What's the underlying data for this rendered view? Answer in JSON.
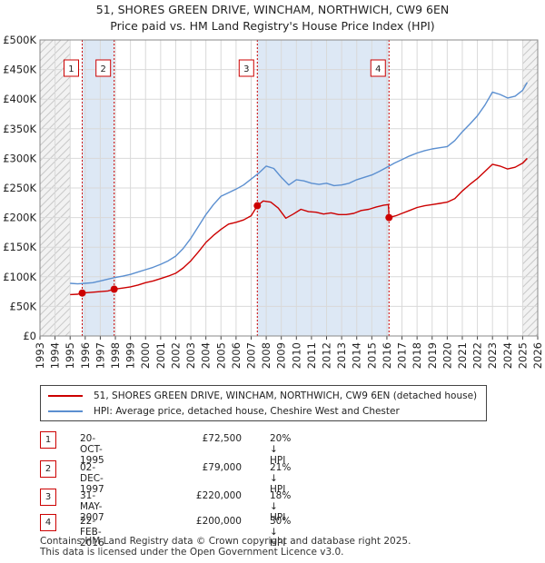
{
  "title_line1": "51, SHORES GREEN DRIVE, WINCHAM, NORTHWICH, CW9 6EN",
  "title_line2": "Price paid vs. HM Land Registry's House Price Index (HPI)",
  "colors": {
    "property": "#cc0000",
    "hpi": "#5b8fd0",
    "band": "#dde8f5",
    "marker_box": "#cc0000"
  },
  "legend": {
    "property_label": "51, SHORES GREEN DRIVE, WINCHAM, NORTHWICH, CW9 6EN (detached house)",
    "hpi_label": "HPI: Average price, detached house, Cheshire West and Chester"
  },
  "transactions": [
    {
      "num": "1",
      "date": "20-OCT-1995",
      "price": "£72,500",
      "hpi": "20% ↓ HPI"
    },
    {
      "num": "2",
      "date": "02-DEC-1997",
      "price": "£79,000",
      "hpi": "21% ↓ HPI"
    },
    {
      "num": "3",
      "date": "31-MAY-2007",
      "price": "£220,000",
      "hpi": "18% ↓ HPI"
    },
    {
      "num": "4",
      "date": "22-FEB-2016",
      "price": "£200,000",
      "hpi": "30% ↓ HPI"
    }
  ],
  "footer_line1": "Contains HM Land Registry data © Crown copyright and database right 2025.",
  "footer_line2": "This data is licensed under the Open Government Licence v3.0.",
  "chart_data": {
    "type": "line",
    "title": "51, SHORES GREEN DRIVE, WINCHAM, NORTHWICH, CW9 6EN",
    "xlim": [
      1993,
      2026
    ],
    "ylim": [
      0,
      500000
    ],
    "x_ticks": [
      "1993",
      "1994",
      "1995",
      "1996",
      "1997",
      "1998",
      "1999",
      "2000",
      "2001",
      "2002",
      "2003",
      "2004",
      "2005",
      "2006",
      "2007",
      "2008",
      "2009",
      "2010",
      "2011",
      "2012",
      "2013",
      "2014",
      "2015",
      "2016",
      "2017",
      "2018",
      "2019",
      "2020",
      "2021",
      "2022",
      "2023",
      "2024",
      "2025",
      "2026"
    ],
    "y_ticks": [
      {
        "value": 0,
        "label": "£0"
      },
      {
        "value": 50000,
        "label": "£50K"
      },
      {
        "value": 100000,
        "label": "£100K"
      },
      {
        "value": 150000,
        "label": "£150K"
      },
      {
        "value": 200000,
        "label": "£200K"
      },
      {
        "value": 250000,
        "label": "£250K"
      },
      {
        "value": 300000,
        "label": "£300K"
      },
      {
        "value": 350000,
        "label": "£350K"
      },
      {
        "value": 400000,
        "label": "£400K"
      },
      {
        "value": 450000,
        "label": "£450K"
      },
      {
        "value": 500000,
        "label": "£500K"
      }
    ],
    "hatched_ranges": [
      [
        1993,
        1995.0
      ],
      [
        2025.0,
        2026
      ]
    ],
    "shaded_ranges": [
      [
        1995.8,
        1997.92
      ],
      [
        2007.41,
        2016.14
      ]
    ],
    "sales": [
      {
        "label": "1",
        "x": 1995.8,
        "y": 72500
      },
      {
        "label": "2",
        "x": 1997.92,
        "y": 79000
      },
      {
        "label": "3",
        "x": 2007.41,
        "y": 220000
      },
      {
        "label": "4",
        "x": 2016.14,
        "y": 200000
      }
    ],
    "series": [
      {
        "name": "HPI: Average price, detached house, Cheshire West and Chester",
        "x": [
          1995.0,
          1995.5,
          1996.0,
          1996.5,
          1997.0,
          1997.5,
          1998.0,
          1998.5,
          1999.0,
          1999.5,
          2000.0,
          2000.5,
          2001.0,
          2001.5,
          2002.0,
          2002.5,
          2003.0,
          2003.5,
          2004.0,
          2004.5,
          2005.0,
          2005.5,
          2006.0,
          2006.5,
          2007.0,
          2007.5,
          2008.0,
          2008.5,
          2009.0,
          2009.5,
          2010.0,
          2010.5,
          2011.0,
          2011.5,
          2012.0,
          2012.5,
          2013.0,
          2013.5,
          2014.0,
          2014.5,
          2015.0,
          2015.5,
          2016.0,
          2016.5,
          2017.0,
          2017.5,
          2018.0,
          2018.5,
          2019.0,
          2019.5,
          2020.0,
          2020.5,
          2021.0,
          2021.5,
          2022.0,
          2022.5,
          2023.0,
          2023.5,
          2024.0,
          2024.5,
          2025.0,
          2025.3
        ],
        "values": [
          89000,
          88000,
          89000,
          90000,
          93000,
          96000,
          99000,
          101000,
          104000,
          108000,
          112000,
          116000,
          121000,
          127000,
          135000,
          148000,
          165000,
          185000,
          205000,
          222000,
          236000,
          242000,
          248000,
          255000,
          265000,
          275000,
          287000,
          283000,
          268000,
          255000,
          264000,
          262000,
          258000,
          256000,
          258000,
          254000,
          255000,
          258000,
          264000,
          268000,
          272000,
          278000,
          285000,
          292000,
          298000,
          304000,
          309000,
          313000,
          316000,
          318000,
          320000,
          330000,
          345000,
          358000,
          372000,
          390000,
          412000,
          408000,
          402000,
          405000,
          415000,
          428000
        ]
      },
      {
        "name": "51, SHORES GREEN DRIVE, WINCHAM, NORTHWICH, CW9 6EN (detached house)",
        "x": [
          1995.0,
          1995.5,
          1995.8,
          1996.5,
          1997.5,
          1997.92,
          1998.5,
          1999.0,
          1999.5,
          2000.0,
          2000.5,
          2001.0,
          2001.5,
          2002.0,
          2002.5,
          2003.0,
          2003.5,
          2004.0,
          2004.5,
          2005.0,
          2005.5,
          2006.0,
          2006.5,
          2007.0,
          2007.41,
          2007.8,
          2008.3,
          2008.8,
          2009.3,
          2009.8,
          2010.3,
          2010.8,
          2011.3,
          2011.8,
          2012.3,
          2012.8,
          2013.3,
          2013.8,
          2014.3,
          2014.8,
          2015.3,
          2015.8,
          2016.1,
          2016.14,
          2016.6,
          2017.0,
          2017.5,
          2018.0,
          2018.5,
          2019.0,
          2019.5,
          2020.0,
          2020.5,
          2021.0,
          2021.5,
          2022.0,
          2022.5,
          2023.0,
          2023.5,
          2024.0,
          2024.5,
          2025.0,
          2025.3
        ],
        "values": [
          70000,
          70500,
          72500,
          74000,
          76000,
          79000,
          81000,
          83000,
          86000,
          90000,
          93000,
          97000,
          101000,
          106000,
          115000,
          127000,
          142000,
          158000,
          170000,
          180000,
          189000,
          192000,
          196000,
          203000,
          220000,
          228000,
          226000,
          216000,
          199000,
          206000,
          214000,
          210000,
          209000,
          206000,
          208000,
          205000,
          205000,
          207000,
          212000,
          214000,
          218000,
          221000,
          222000,
          200000,
          203000,
          207000,
          212000,
          217000,
          220000,
          222000,
          224000,
          226000,
          232000,
          245000,
          256000,
          266000,
          278000,
          290000,
          287000,
          282000,
          285000,
          292000,
          300000
        ]
      }
    ]
  }
}
